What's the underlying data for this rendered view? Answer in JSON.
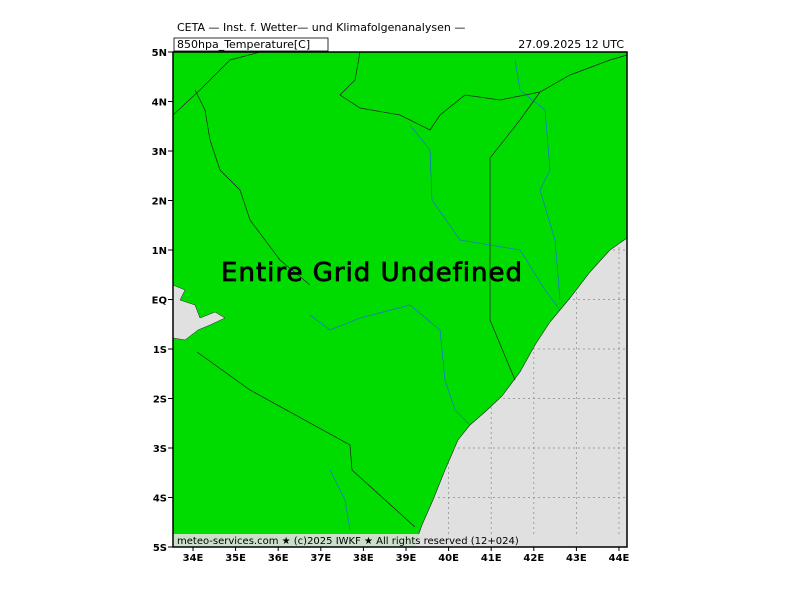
{
  "header": {
    "title": "CETA — Inst. f. Wetter— und Klimafolgenanalysen —",
    "field": "850hpa_Temperature[C]",
    "time": "27.09.2025 12 UTC"
  },
  "map": {
    "message": "Entire Grid Undefined",
    "lat_labels": [
      "5N",
      "4N",
      "3N",
      "2N",
      "1N",
      "EQ",
      "1S",
      "2S",
      "3S",
      "4S",
      "5S"
    ],
    "lon_labels": [
      "34E",
      "35E",
      "36E",
      "37E",
      "38E",
      "39E",
      "40E",
      "41E",
      "42E",
      "43E",
      "44E"
    ],
    "footer": "meteo-services.com ★ (c)2025 IWKF ★ All rights reserved (12+024)"
  }
}
